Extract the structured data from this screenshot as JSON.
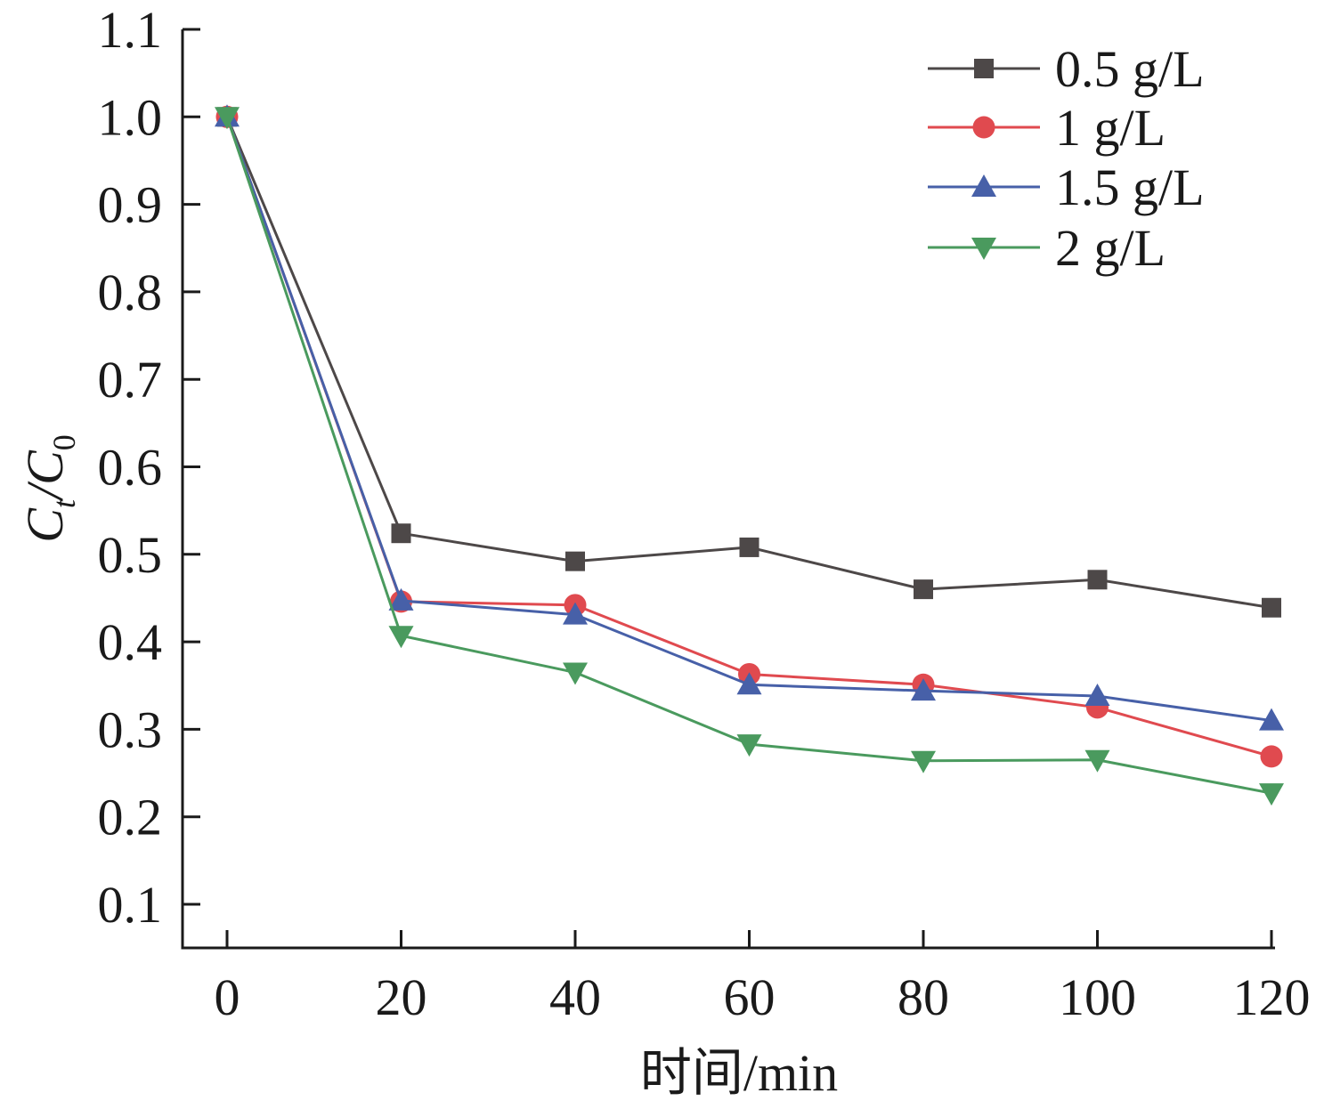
{
  "chart_data": {
    "type": "line",
    "xlabel": "时间/min",
    "ylabel_main": "C",
    "ylabel_sub1": "t",
    "ylabel_slash": "/C",
    "ylabel_sub2": "0",
    "xlim": [
      -5,
      121
    ],
    "ylim": [
      0.05,
      1.1
    ],
    "xticks": [
      0,
      20,
      40,
      60,
      80,
      100,
      120
    ],
    "xtick_labels": [
      "0",
      "20",
      "40",
      "60",
      "80",
      "100",
      "120"
    ],
    "yticks": [
      0.1,
      0.2,
      0.3,
      0.4,
      0.5,
      0.6,
      0.7,
      0.8,
      0.9,
      1.0,
      1.1
    ],
    "ytick_labels": [
      "0.1",
      "0.2",
      "0.3",
      "0.4",
      "0.5",
      "0.6",
      "0.7",
      "0.8",
      "0.9",
      "1.0",
      "1.1"
    ],
    "x": [
      0,
      20,
      40,
      60,
      80,
      100,
      120
    ],
    "legend_position": "top-right",
    "series": [
      {
        "name": "0.5 g/L",
        "color": "#4d4848",
        "marker": "square",
        "values": [
          1.0,
          0.524,
          0.492,
          0.508,
          0.46,
          0.471,
          0.439
        ]
      },
      {
        "name": "1 g/L",
        "color": "#e04a4f",
        "marker": "circle",
        "values": [
          1.0,
          0.446,
          0.442,
          0.363,
          0.351,
          0.325,
          0.269
        ]
      },
      {
        "name": "1.5 g/L",
        "color": "#4760a8",
        "marker": "triangle-up",
        "values": [
          1.0,
          0.447,
          0.431,
          0.351,
          0.344,
          0.338,
          0.31
        ]
      },
      {
        "name": "2 g/L",
        "color": "#4a9a5e",
        "marker": "triangle-down",
        "values": [
          1.0,
          0.407,
          0.365,
          0.283,
          0.264,
          0.265,
          0.227
        ]
      }
    ]
  }
}
